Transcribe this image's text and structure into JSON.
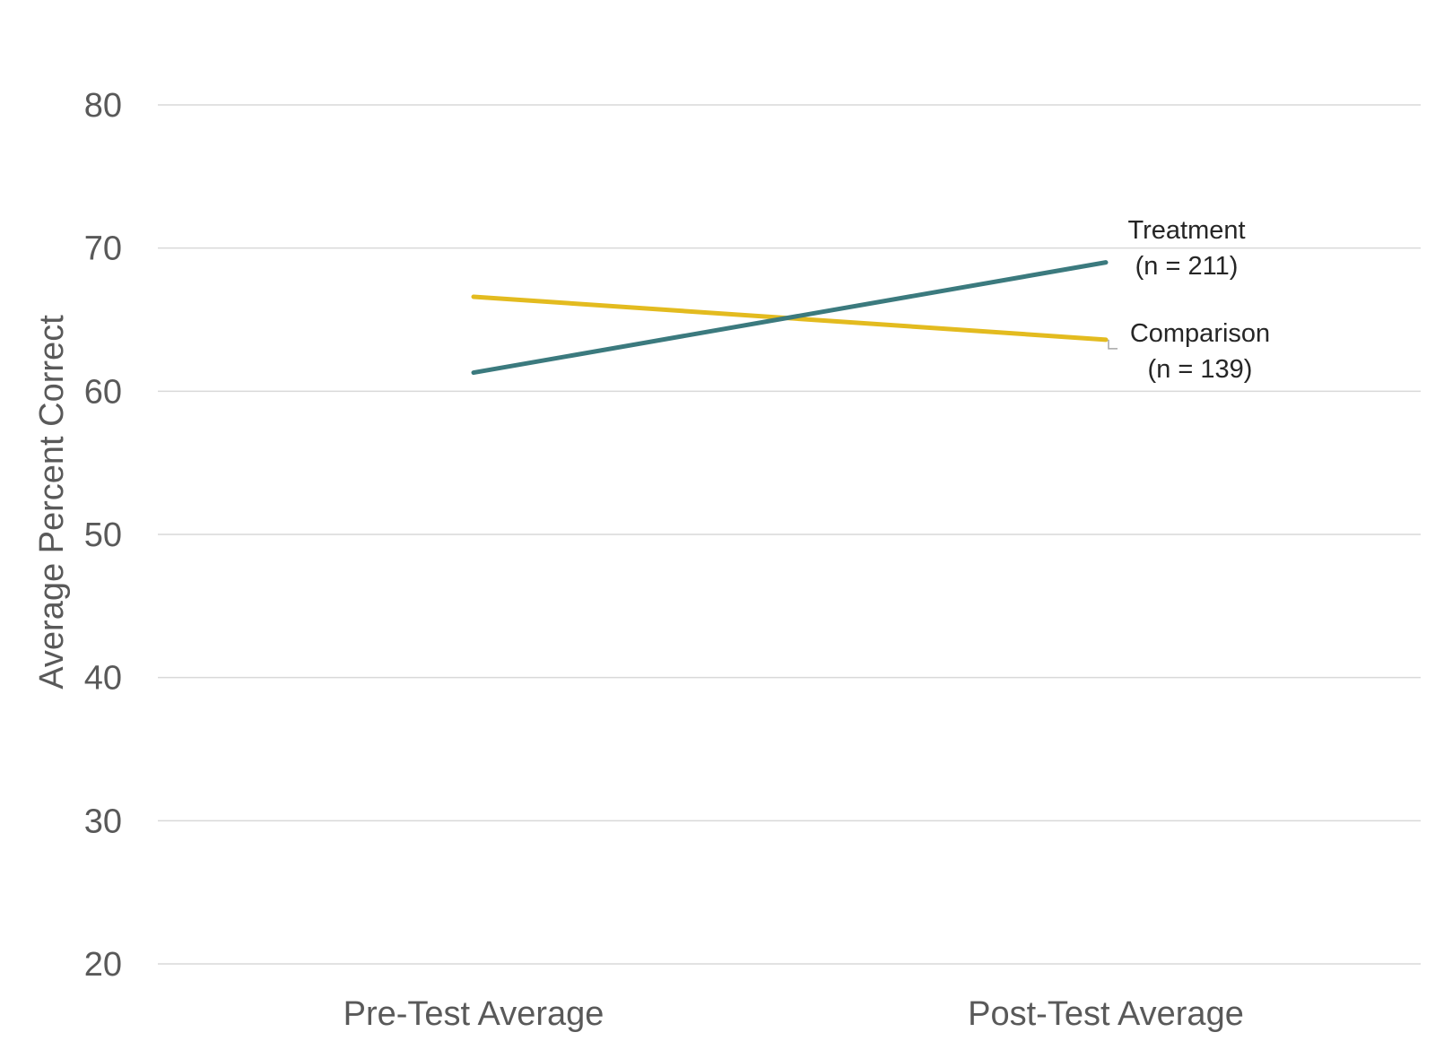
{
  "chart_data": {
    "type": "line",
    "categories": [
      "Pre-Test Average",
      "Post-Test Average"
    ],
    "ylabel": "Average Percent Correct",
    "xlabel": "",
    "title": "",
    "ylim": [
      20,
      80
    ],
    "yticks": [
      "20",
      "30",
      "40",
      "50",
      "60",
      "70",
      "80"
    ],
    "grid": true,
    "legend": "none",
    "series": [
      {
        "name": "Treatment",
        "label_line2": "(n = 211)",
        "values": [
          61.3,
          69.0
        ],
        "color": "#3b7a7e"
      },
      {
        "name": "Comparison",
        "label_line2": "(n = 139)",
        "values": [
          66.6,
          63.6
        ],
        "color": "#e3bb1f"
      }
    ]
  }
}
